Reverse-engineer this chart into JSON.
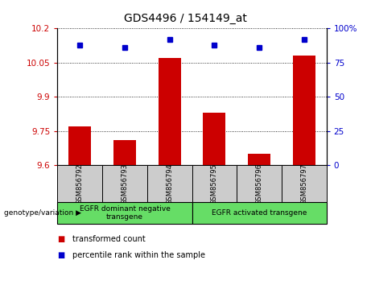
{
  "title": "GDS4496 / 154149_at",
  "samples": [
    "GSM856792",
    "GSM856793",
    "GSM856794",
    "GSM856795",
    "GSM856796",
    "GSM856797"
  ],
  "transformed_count": [
    9.77,
    9.71,
    10.07,
    9.83,
    9.65,
    10.08
  ],
  "percentile_rank": [
    88,
    86,
    92,
    88,
    86,
    92
  ],
  "ylim_left": [
    9.6,
    10.2
  ],
  "ylim_right": [
    0,
    100
  ],
  "yticks_left": [
    9.6,
    9.75,
    9.9,
    10.05,
    10.2
  ],
  "ytick_labels_left": [
    "9.6",
    "9.75",
    "9.9",
    "10.05",
    "10.2"
  ],
  "yticks_right": [
    0,
    25,
    50,
    75,
    100
  ],
  "ytick_labels_right": [
    "0",
    "25",
    "50",
    "75",
    "100%"
  ],
  "bar_color": "#CC0000",
  "dot_color": "#0000CC",
  "group1_label": "EGFR dominant negative\ntransgene",
  "group2_label": "EGFR activated transgene",
  "group_label_prefix": "genotype/variation",
  "legend_bar_label": "transformed count",
  "legend_dot_label": "percentile rank within the sample",
  "tick_color_left": "#CC0000",
  "tick_color_right": "#0000CC",
  "bar_width": 0.5,
  "bg_xtick": "#CCCCCC",
  "bg_group": "#66DD66"
}
